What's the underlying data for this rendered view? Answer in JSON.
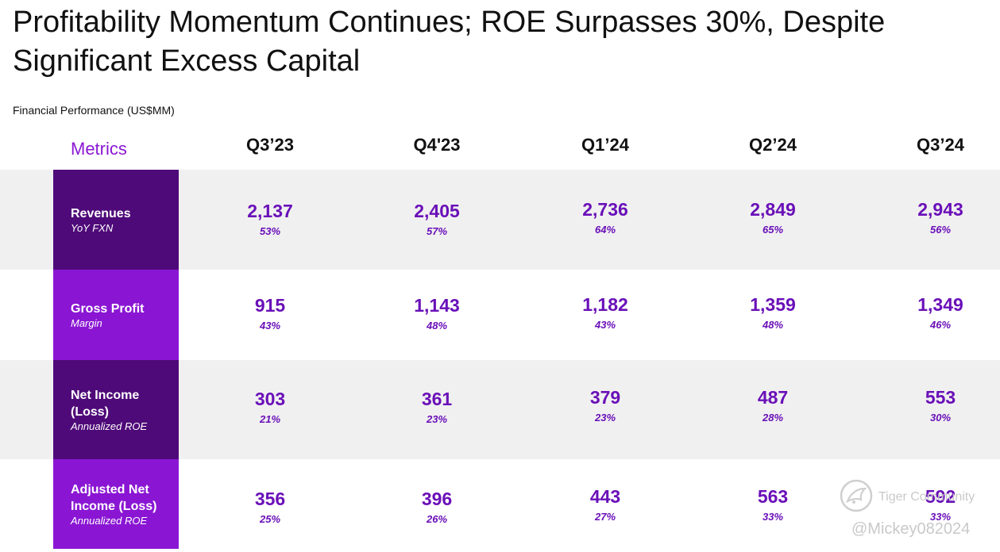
{
  "title": "Profitability Momentum Continues; ROE Surpasses 30%, Despite Significant Excess Capital",
  "subtitle": "Financial Performance (US$MM)",
  "metrics_label": "Metrics",
  "quarters": [
    "Q3’23",
    "Q4'23",
    "Q1’24",
    "Q2’24",
    "Q3’24"
  ],
  "rows": [
    {
      "name": "Revenues",
      "sub": "YoY FXN",
      "values": [
        "2,137",
        "2,405",
        "2,736",
        "2,849",
        "2,943"
      ],
      "pcts": [
        "53%",
        "57%",
        "64%",
        "65%",
        "56%"
      ]
    },
    {
      "name": "Gross Profit",
      "sub": "Margin",
      "values": [
        "915",
        "1,143",
        "1,182",
        "1,359",
        "1,349"
      ],
      "pcts": [
        "43%",
        "48%",
        "43%",
        "48%",
        "46%"
      ]
    },
    {
      "name": "Net Income (Loss)",
      "sub": "Annualized ROE",
      "values": [
        "303",
        "361",
        "379",
        "487",
        "553"
      ],
      "pcts": [
        "21%",
        "23%",
        "23%",
        "28%",
        "30%"
      ]
    },
    {
      "name": "Adjusted Net Income (Loss)",
      "sub": "Annualized ROE",
      "values": [
        "356",
        "396",
        "443",
        "563",
        "592"
      ],
      "pcts": [
        "25%",
        "26%",
        "27%",
        "33%",
        "33%"
      ]
    }
  ],
  "watermark": {
    "brand": "Tiger Community",
    "user": "@Mickey082024"
  },
  "colors": {
    "accent": "#8a17d4",
    "dark_purple": "#4f0a79",
    "value_purple": "#6a10b8",
    "row_gray": "#f0f0f0"
  }
}
